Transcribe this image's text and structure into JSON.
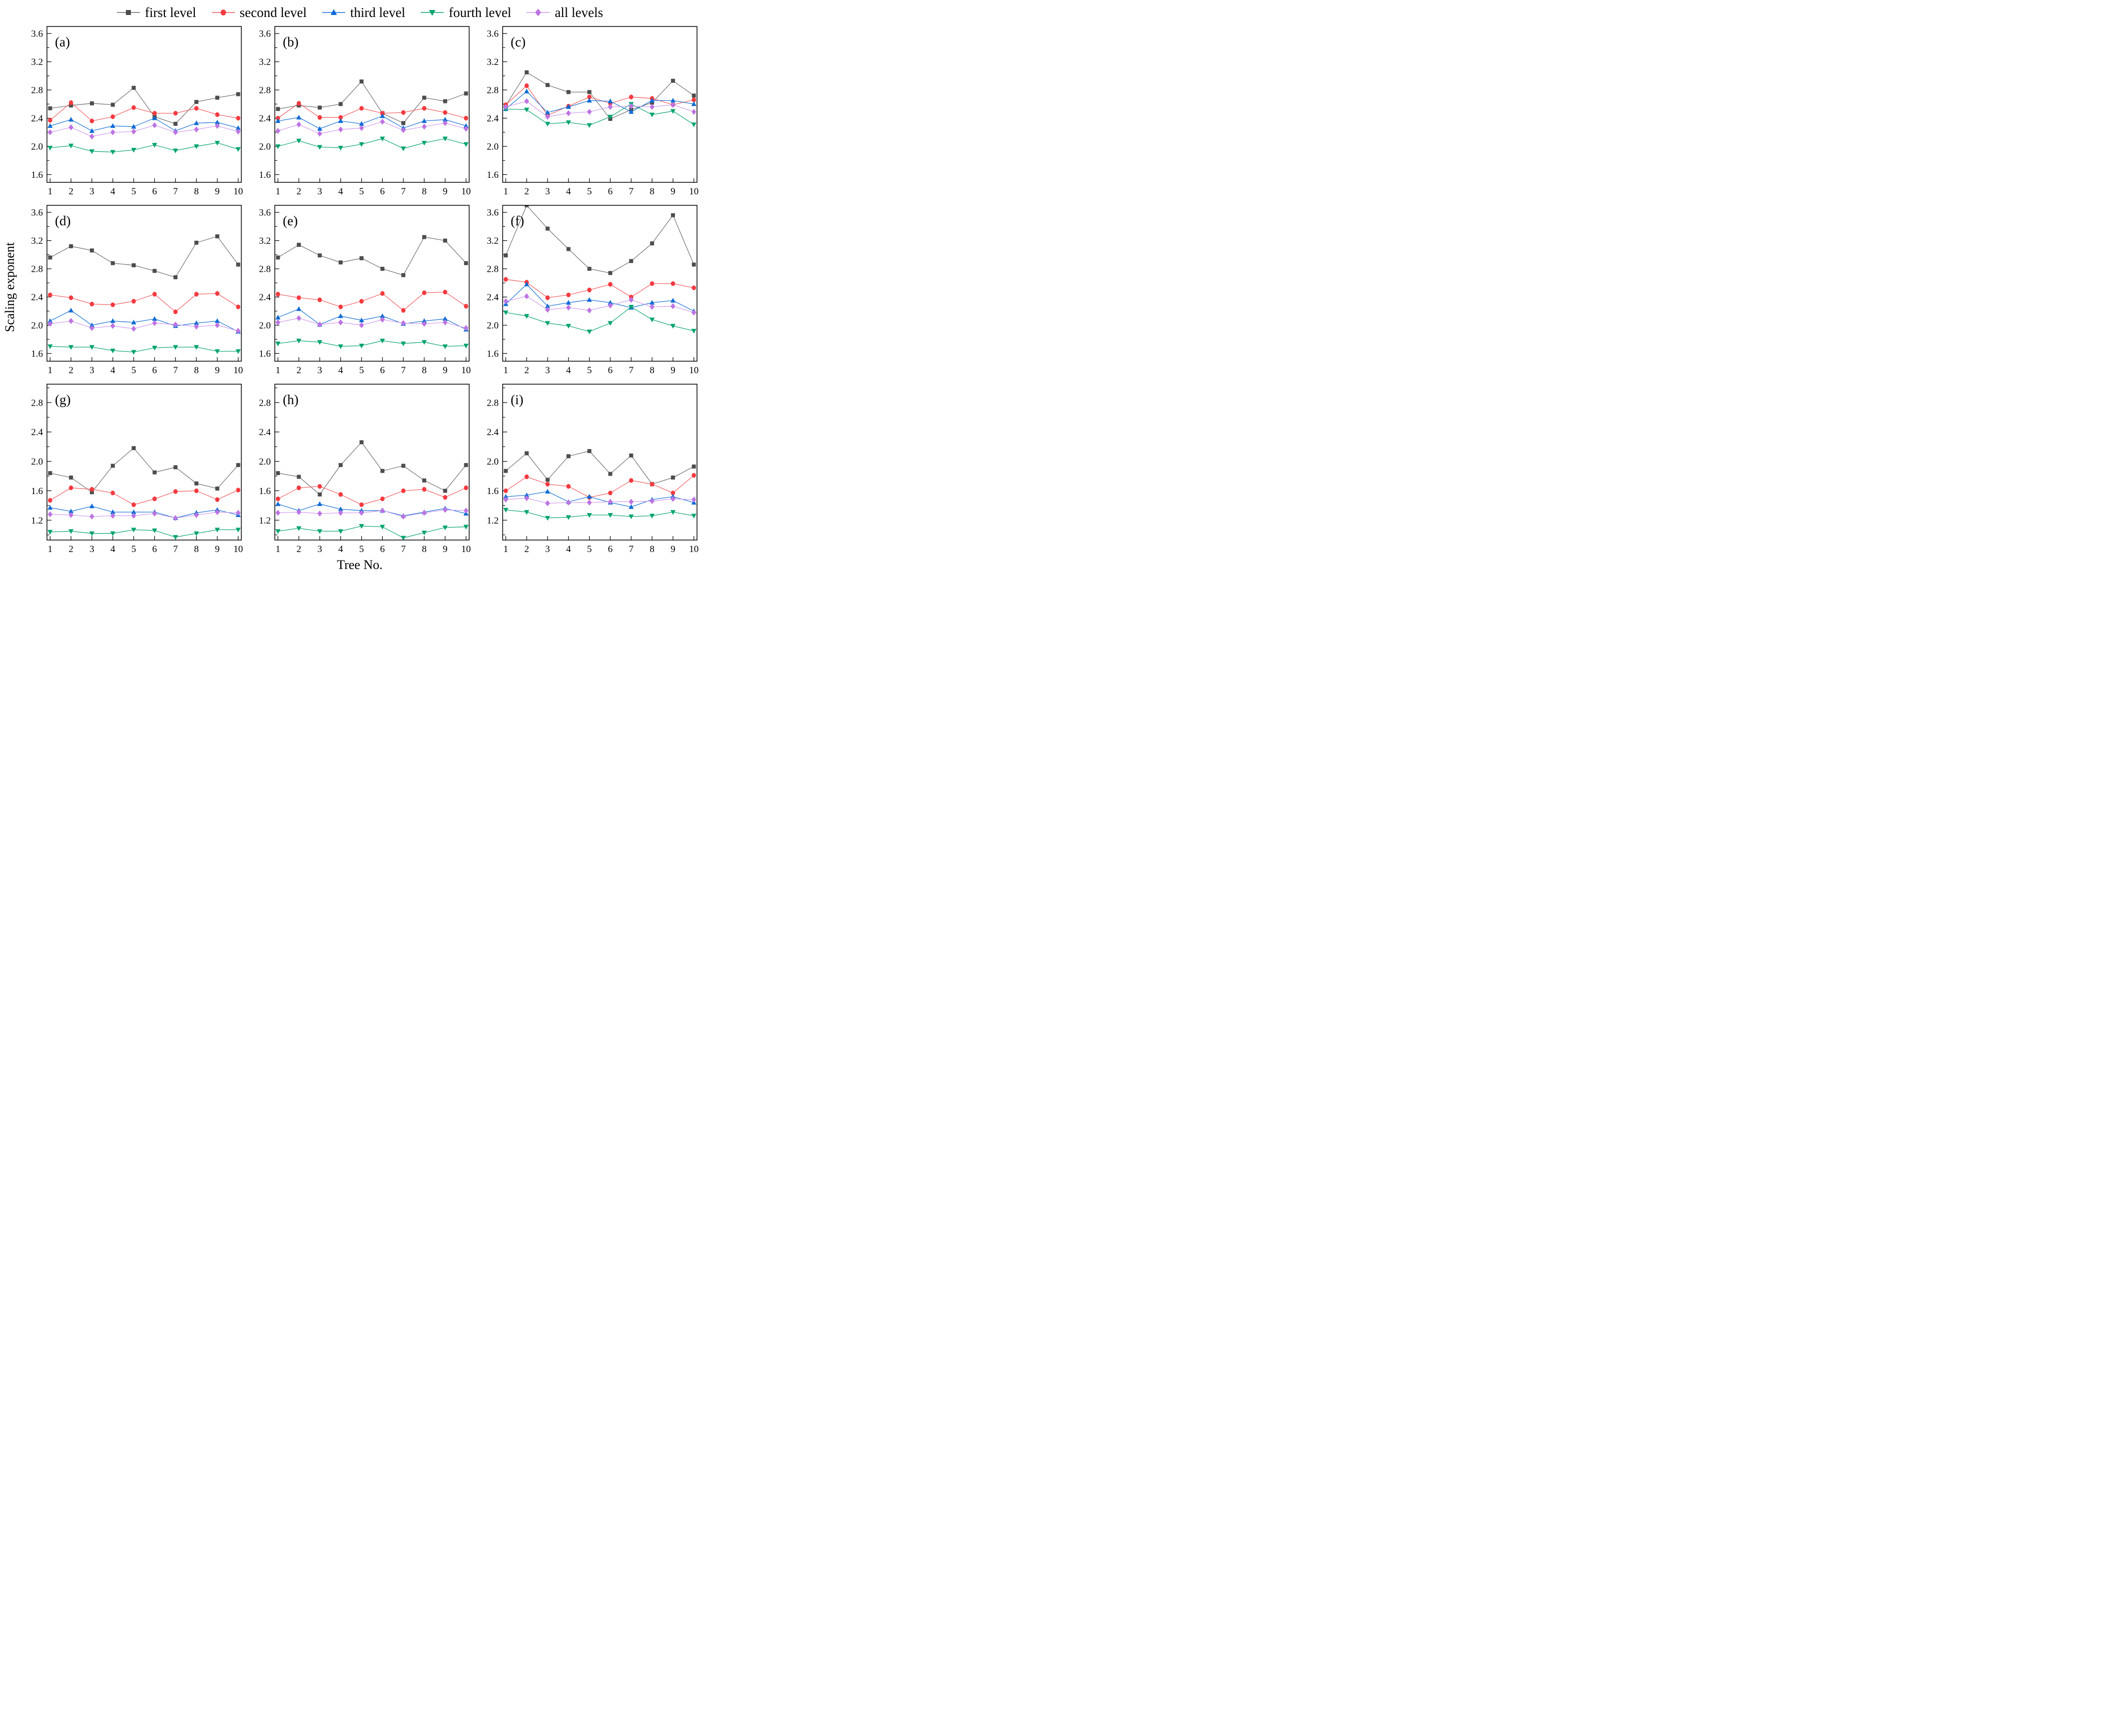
{
  "page": {
    "background": "#ffffff"
  },
  "axes": {
    "x_label": "Tree No.",
    "y_label": "Scaling exponent"
  },
  "legend": {
    "items": [
      {
        "label": "first level",
        "marker": "square",
        "color": "#4d4d4d",
        "line_color": "#6a6a6a"
      },
      {
        "label": "second level",
        "marker": "circle",
        "color": "#f43a40",
        "line_color": "#f4555a"
      },
      {
        "label": "third level",
        "marker": "triangle-up",
        "color": "#0d6bd5",
        "line_color": "#0d6bd5"
      },
      {
        "label": "fourth level",
        "marker": "triangle-down",
        "color": "#00a36f",
        "line_color": "#00a36f"
      },
      {
        "label": "all levels",
        "marker": "diamond",
        "color": "#bd74e2",
        "line_color": "#cf97ec"
      }
    ]
  },
  "chart_data": [
    {
      "type": "line",
      "label": "(a)",
      "x": [
        1,
        2,
        3,
        4,
        5,
        6,
        7,
        8,
        9,
        10
      ],
      "xlim": [
        0.85,
        10.15
      ],
      "ylim": [
        1.49,
        3.7
      ],
      "yticks": [
        1.6,
        2.0,
        2.4,
        2.8,
        3.2,
        3.6
      ],
      "y_minor_step": 0.2,
      "grid": false,
      "series": [
        {
          "name": "first level",
          "values": [
            2.54,
            2.58,
            2.61,
            2.59,
            2.83,
            2.42,
            2.32,
            2.63,
            2.69,
            2.74
          ]
        },
        {
          "name": "second level",
          "values": [
            2.37,
            2.62,
            2.36,
            2.42,
            2.55,
            2.47,
            2.47,
            2.54,
            2.45,
            2.4
          ]
        },
        {
          "name": "third level",
          "values": [
            2.29,
            2.38,
            2.22,
            2.29,
            2.28,
            2.4,
            2.22,
            2.33,
            2.34,
            2.26
          ]
        },
        {
          "name": "fourth level",
          "values": [
            1.98,
            2.01,
            1.93,
            1.92,
            1.95,
            2.02,
            1.94,
            2.0,
            2.05,
            1.96
          ]
        },
        {
          "name": "all levels",
          "values": [
            2.2,
            2.27,
            2.14,
            2.2,
            2.21,
            2.3,
            2.2,
            2.24,
            2.29,
            2.21
          ]
        }
      ]
    },
    {
      "type": "line",
      "label": "(b)",
      "x": [
        1,
        2,
        3,
        4,
        5,
        6,
        7,
        8,
        9,
        10
      ],
      "xlim": [
        0.85,
        10.15
      ],
      "ylim": [
        1.49,
        3.7
      ],
      "yticks": [
        1.6,
        2.0,
        2.4,
        2.8,
        3.2,
        3.6
      ],
      "y_minor_step": 0.2,
      "grid": false,
      "series": [
        {
          "name": "first level",
          "values": [
            2.53,
            2.58,
            2.55,
            2.6,
            2.92,
            2.47,
            2.33,
            2.69,
            2.64,
            2.75
          ]
        },
        {
          "name": "second level",
          "values": [
            2.4,
            2.61,
            2.41,
            2.41,
            2.54,
            2.47,
            2.48,
            2.54,
            2.48,
            2.4
          ]
        },
        {
          "name": "third level",
          "values": [
            2.36,
            2.41,
            2.25,
            2.36,
            2.32,
            2.43,
            2.26,
            2.36,
            2.38,
            2.29
          ]
        },
        {
          "name": "fourth level",
          "values": [
            2.0,
            2.08,
            1.99,
            1.98,
            2.03,
            2.11,
            1.97,
            2.05,
            2.11,
            2.03
          ]
        },
        {
          "name": "all levels",
          "values": [
            2.22,
            2.31,
            2.18,
            2.24,
            2.26,
            2.35,
            2.23,
            2.28,
            2.33,
            2.25
          ]
        }
      ]
    },
    {
      "type": "line",
      "label": "(c)",
      "x": [
        1,
        2,
        3,
        4,
        5,
        6,
        7,
        8,
        9,
        10
      ],
      "xlim": [
        0.85,
        10.15
      ],
      "ylim": [
        1.49,
        3.7
      ],
      "yticks": [
        1.6,
        2.0,
        2.4,
        2.8,
        3.2,
        3.6
      ],
      "y_minor_step": 0.2,
      "grid": false,
      "series": [
        {
          "name": "first level",
          "values": [
            2.58,
            3.05,
            2.87,
            2.77,
            2.77,
            2.39,
            2.52,
            2.62,
            2.93,
            2.72
          ]
        },
        {
          "name": "second level",
          "values": [
            2.59,
            2.86,
            2.44,
            2.57,
            2.7,
            2.61,
            2.7,
            2.68,
            2.59,
            2.66
          ]
        },
        {
          "name": "third level",
          "values": [
            2.53,
            2.78,
            2.48,
            2.56,
            2.65,
            2.64,
            2.49,
            2.65,
            2.65,
            2.6
          ]
        },
        {
          "name": "fourth level",
          "values": [
            2.53,
            2.52,
            2.32,
            2.34,
            2.3,
            2.42,
            2.6,
            2.45,
            2.5,
            2.31
          ]
        },
        {
          "name": "all levels",
          "values": [
            2.56,
            2.64,
            2.42,
            2.47,
            2.49,
            2.56,
            2.57,
            2.56,
            2.59,
            2.49
          ]
        }
      ]
    },
    {
      "type": "line",
      "label": "(d)",
      "x": [
        1,
        2,
        3,
        4,
        5,
        6,
        7,
        8,
        9,
        10
      ],
      "xlim": [
        0.85,
        10.15
      ],
      "ylim": [
        1.49,
        3.7
      ],
      "yticks": [
        1.6,
        2.0,
        2.4,
        2.8,
        3.2,
        3.6
      ],
      "y_minor_step": 0.2,
      "grid": false,
      "series": [
        {
          "name": "first level",
          "values": [
            2.96,
            3.12,
            3.06,
            2.88,
            2.85,
            2.77,
            2.68,
            3.17,
            3.26,
            2.86
          ]
        },
        {
          "name": "second level",
          "values": [
            2.43,
            2.39,
            2.3,
            2.29,
            2.34,
            2.44,
            2.19,
            2.44,
            2.45,
            2.26
          ]
        },
        {
          "name": "third level",
          "values": [
            2.06,
            2.21,
            2.0,
            2.06,
            2.04,
            2.09,
            1.99,
            2.03,
            2.06,
            1.91
          ]
        },
        {
          "name": "fourth level",
          "values": [
            1.7,
            1.69,
            1.69,
            1.64,
            1.62,
            1.68,
            1.69,
            1.69,
            1.63,
            1.63
          ]
        },
        {
          "name": "all levels",
          "values": [
            2.02,
            2.06,
            1.96,
            1.99,
            1.95,
            2.03,
            2.01,
            1.98,
            2.0,
            1.92
          ]
        }
      ]
    },
    {
      "type": "line",
      "label": "(e)",
      "x": [
        1,
        2,
        3,
        4,
        5,
        6,
        7,
        8,
        9,
        10
      ],
      "xlim": [
        0.85,
        10.15
      ],
      "ylim": [
        1.49,
        3.7
      ],
      "yticks": [
        1.6,
        2.0,
        2.4,
        2.8,
        3.2,
        3.6
      ],
      "y_minor_step": 0.2,
      "grid": false,
      "series": [
        {
          "name": "first level",
          "values": [
            2.96,
            3.14,
            2.99,
            2.89,
            2.95,
            2.8,
            2.71,
            3.25,
            3.2,
            2.88
          ]
        },
        {
          "name": "second level",
          "values": [
            2.44,
            2.39,
            2.36,
            2.26,
            2.34,
            2.45,
            2.21,
            2.46,
            2.47,
            2.27
          ]
        },
        {
          "name": "third level",
          "values": [
            2.11,
            2.23,
            2.01,
            2.13,
            2.07,
            2.13,
            2.02,
            2.06,
            2.09,
            1.94
          ]
        },
        {
          "name": "fourth level",
          "values": [
            1.74,
            1.78,
            1.76,
            1.7,
            1.71,
            1.78,
            1.74,
            1.76,
            1.7,
            1.71
          ]
        },
        {
          "name": "all levels",
          "values": [
            2.04,
            2.1,
            2.01,
            2.04,
            2.0,
            2.08,
            2.03,
            2.02,
            2.04,
            1.96
          ]
        }
      ]
    },
    {
      "type": "line",
      "label": "(f)",
      "x": [
        1,
        2,
        3,
        4,
        5,
        6,
        7,
        8,
        9,
        10
      ],
      "xlim": [
        0.85,
        10.15
      ],
      "ylim": [
        1.49,
        3.7
      ],
      "yticks": [
        1.6,
        2.0,
        2.4,
        2.8,
        3.2,
        3.6
      ],
      "y_minor_step": 0.2,
      "grid": false,
      "series": [
        {
          "name": "first level",
          "values": [
            2.99,
            3.7,
            3.37,
            3.08,
            2.8,
            2.74,
            2.91,
            3.16,
            3.56,
            2.86
          ]
        },
        {
          "name": "second level",
          "values": [
            2.65,
            2.61,
            2.39,
            2.43,
            2.5,
            2.58,
            2.4,
            2.59,
            2.59,
            2.53
          ]
        },
        {
          "name": "third level",
          "values": [
            2.3,
            2.58,
            2.27,
            2.32,
            2.36,
            2.32,
            2.25,
            2.32,
            2.35,
            2.2
          ]
        },
        {
          "name": "fourth level",
          "values": [
            2.18,
            2.13,
            2.03,
            1.99,
            1.91,
            2.03,
            2.26,
            2.08,
            1.99,
            1.92
          ]
        },
        {
          "name": "all levels",
          "values": [
            2.34,
            2.41,
            2.22,
            2.25,
            2.21,
            2.28,
            2.36,
            2.26,
            2.27,
            2.18
          ]
        }
      ]
    },
    {
      "type": "line",
      "label": "(g)",
      "x": [
        1,
        2,
        3,
        4,
        5,
        6,
        7,
        8,
        9,
        10
      ],
      "xlim": [
        0.85,
        10.15
      ],
      "ylim": [
        0.93,
        3.05
      ],
      "yticks": [
        1.2,
        1.6,
        2.0,
        2.4,
        2.8
      ],
      "y_minor_step": 0.2,
      "grid": false,
      "series": [
        {
          "name": "first level",
          "values": [
            1.84,
            1.78,
            1.58,
            1.94,
            2.18,
            1.85,
            1.92,
            1.7,
            1.63,
            1.95
          ]
        },
        {
          "name": "second level",
          "values": [
            1.47,
            1.64,
            1.62,
            1.57,
            1.41,
            1.49,
            1.59,
            1.6,
            1.48,
            1.61
          ]
        },
        {
          "name": "third level",
          "values": [
            1.37,
            1.32,
            1.39,
            1.31,
            1.31,
            1.31,
            1.23,
            1.3,
            1.34,
            1.27
          ]
        },
        {
          "name": "fourth level",
          "values": [
            1.04,
            1.05,
            1.02,
            1.02,
            1.07,
            1.06,
            0.97,
            1.02,
            1.07,
            1.07
          ]
        },
        {
          "name": "all levels",
          "values": [
            1.28,
            1.27,
            1.25,
            1.26,
            1.26,
            1.29,
            1.23,
            1.27,
            1.31,
            1.3
          ]
        }
      ]
    },
    {
      "type": "line",
      "label": "(h)",
      "x": [
        1,
        2,
        3,
        4,
        5,
        6,
        7,
        8,
        9,
        10
      ],
      "xlim": [
        0.85,
        10.15
      ],
      "ylim": [
        0.93,
        3.05
      ],
      "yticks": [
        1.2,
        1.6,
        2.0,
        2.4,
        2.8
      ],
      "y_minor_step": 0.2,
      "grid": false,
      "series": [
        {
          "name": "first level",
          "values": [
            1.84,
            1.79,
            1.55,
            1.95,
            2.26,
            1.87,
            1.94,
            1.74,
            1.6,
            1.95
          ]
        },
        {
          "name": "second level",
          "values": [
            1.49,
            1.64,
            1.66,
            1.55,
            1.41,
            1.49,
            1.6,
            1.62,
            1.51,
            1.64
          ]
        },
        {
          "name": "third level",
          "values": [
            1.42,
            1.33,
            1.42,
            1.35,
            1.33,
            1.33,
            1.26,
            1.31,
            1.36,
            1.29
          ]
        },
        {
          "name": "fourth level",
          "values": [
            1.05,
            1.09,
            1.05,
            1.05,
            1.12,
            1.11,
            0.96,
            1.03,
            1.1,
            1.11
          ]
        },
        {
          "name": "all levels",
          "values": [
            1.3,
            1.31,
            1.29,
            1.3,
            1.3,
            1.33,
            1.25,
            1.3,
            1.34,
            1.33
          ]
        }
      ]
    },
    {
      "type": "line",
      "label": "(i)",
      "x": [
        1,
        2,
        3,
        4,
        5,
        6,
        7,
        8,
        9,
        10
      ],
      "xlim": [
        0.85,
        10.15
      ],
      "ylim": [
        0.93,
        3.05
      ],
      "yticks": [
        1.2,
        1.6,
        2.0,
        2.4,
        2.8
      ],
      "y_minor_step": 0.2,
      "grid": false,
      "series": [
        {
          "name": "first level",
          "values": [
            1.87,
            2.11,
            1.75,
            2.07,
            2.14,
            1.83,
            2.08,
            1.69,
            1.78,
            1.93
          ]
        },
        {
          "name": "second level",
          "values": [
            1.6,
            1.79,
            1.69,
            1.66,
            1.51,
            1.57,
            1.74,
            1.69,
            1.57,
            1.81
          ]
        },
        {
          "name": "third level",
          "values": [
            1.52,
            1.54,
            1.59,
            1.45,
            1.52,
            1.44,
            1.38,
            1.48,
            1.52,
            1.44
          ]
        },
        {
          "name": "fourth level",
          "values": [
            1.34,
            1.31,
            1.23,
            1.24,
            1.27,
            1.27,
            1.25,
            1.26,
            1.31,
            1.26
          ]
        },
        {
          "name": "all levels",
          "values": [
            1.48,
            1.5,
            1.43,
            1.44,
            1.44,
            1.45,
            1.45,
            1.46,
            1.49,
            1.48
          ]
        }
      ]
    }
  ]
}
